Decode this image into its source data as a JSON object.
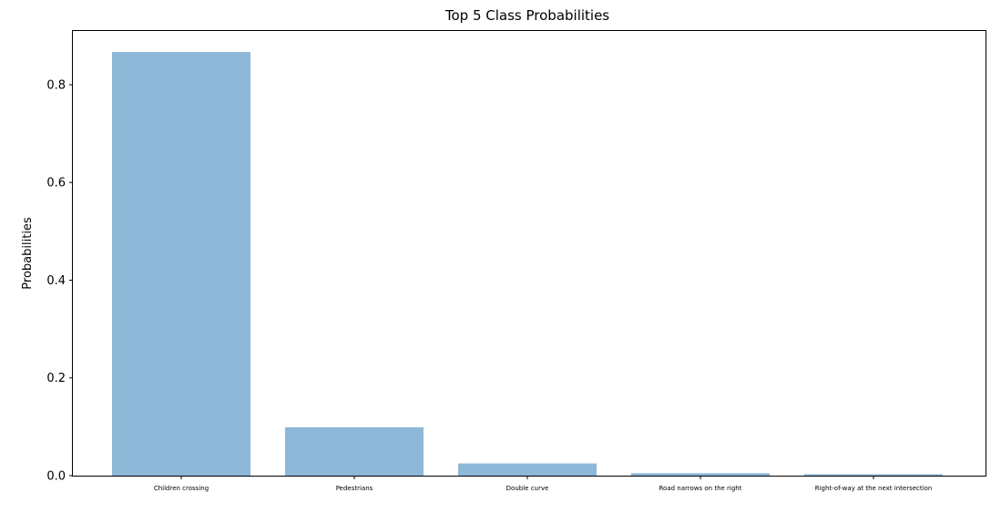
{
  "chart_data": {
    "type": "bar",
    "title": "Top 5 Class Probabilities",
    "ylabel": "Probabilities",
    "xlabel": "",
    "categories": [
      "Children crossing",
      "Pedestrians",
      "Double curve",
      "Road narrows on the right",
      "Right-of-way at the next intersection"
    ],
    "values": [
      0.867,
      0.099,
      0.025,
      0.005,
      0.003
    ],
    "ylim": [
      0,
      0.91
    ],
    "yticks": [
      0.0,
      0.2,
      0.4,
      0.6,
      0.8
    ],
    "ytick_labels": [
      "0.0",
      "0.2",
      "0.4",
      "0.6",
      "0.8"
    ],
    "bar_color": "#8db8d8",
    "grid": false,
    "legend": "none"
  }
}
